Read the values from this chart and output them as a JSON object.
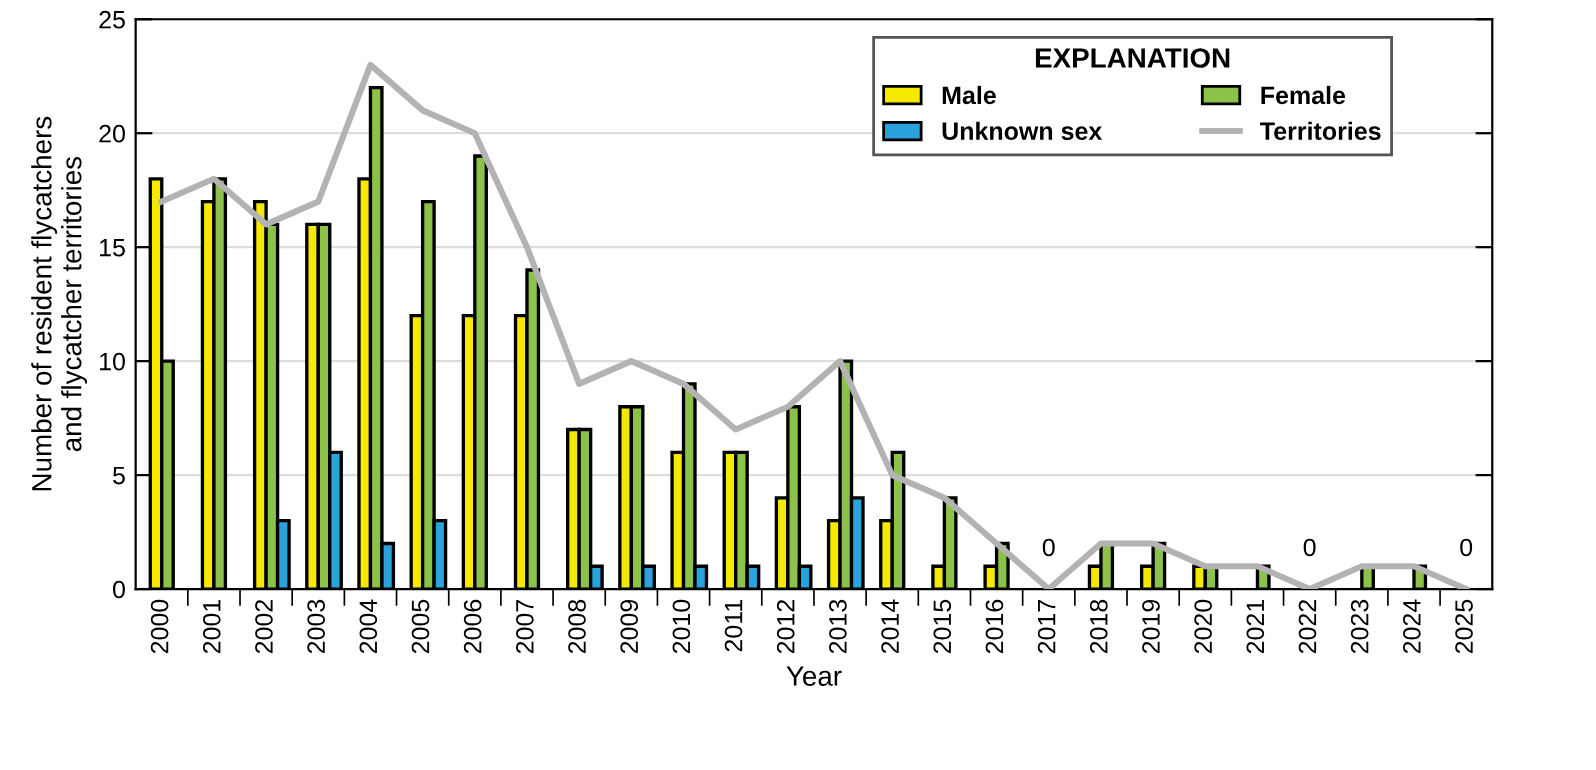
{
  "chart_data": {
    "type": "bar",
    "xlabel": "Year",
    "ylabel": "Number of resident flycatchers\nand flycatcher territories",
    "legend_title": "EXPLANATION",
    "categories": [
      "2000",
      "2001",
      "2002",
      "2003",
      "2004",
      "2005",
      "2006",
      "2007",
      "2008",
      "2009",
      "2010",
      "2011",
      "2012",
      "2013",
      "2014",
      "2015",
      "2016",
      "2017",
      "2018",
      "2019",
      "2020",
      "2021",
      "2022",
      "2023",
      "2024",
      "2025"
    ],
    "series": [
      {
        "name": "Male",
        "color": "#f5e900",
        "values": [
          18,
          17,
          17,
          16,
          18,
          12,
          12,
          12,
          7,
          8,
          6,
          6,
          4,
          3,
          3,
          1,
          1,
          0,
          1,
          1,
          1,
          0,
          0,
          0,
          0,
          0
        ]
      },
      {
        "name": "Female",
        "color": "#8cc14a",
        "values": [
          10,
          18,
          16,
          16,
          22,
          17,
          19,
          14,
          7,
          8,
          9,
          6,
          8,
          10,
          6,
          4,
          2,
          0,
          2,
          2,
          1,
          1,
          0,
          1,
          1,
          0
        ]
      },
      {
        "name": "Unknown sex",
        "color": "#2aa3dc",
        "values": [
          0,
          0,
          3,
          6,
          2,
          3,
          0,
          0,
          1,
          1,
          1,
          1,
          1,
          4,
          0,
          0,
          0,
          0,
          0,
          0,
          0,
          0,
          0,
          0,
          0,
          0
        ]
      },
      {
        "name": "Territories",
        "type": "line",
        "color": "#b3b3b3",
        "values": [
          17,
          18,
          16,
          17,
          23,
          21,
          20,
          15,
          9,
          10,
          9,
          7,
          8,
          10,
          5,
          4,
          2,
          0,
          2,
          2,
          1,
          1,
          0,
          1,
          1,
          0
        ]
      }
    ],
    "annotations": [
      {
        "text": "0",
        "x": "2017",
        "y": 0
      },
      {
        "text": "0",
        "x": "2022",
        "y": 0
      },
      {
        "text": "0",
        "x": "2025",
        "y": 0
      }
    ],
    "ylim": [
      0,
      25
    ],
    "yticks": [
      0,
      5,
      10,
      15,
      20,
      25
    ],
    "grid": "y",
    "legend": "top right"
  }
}
